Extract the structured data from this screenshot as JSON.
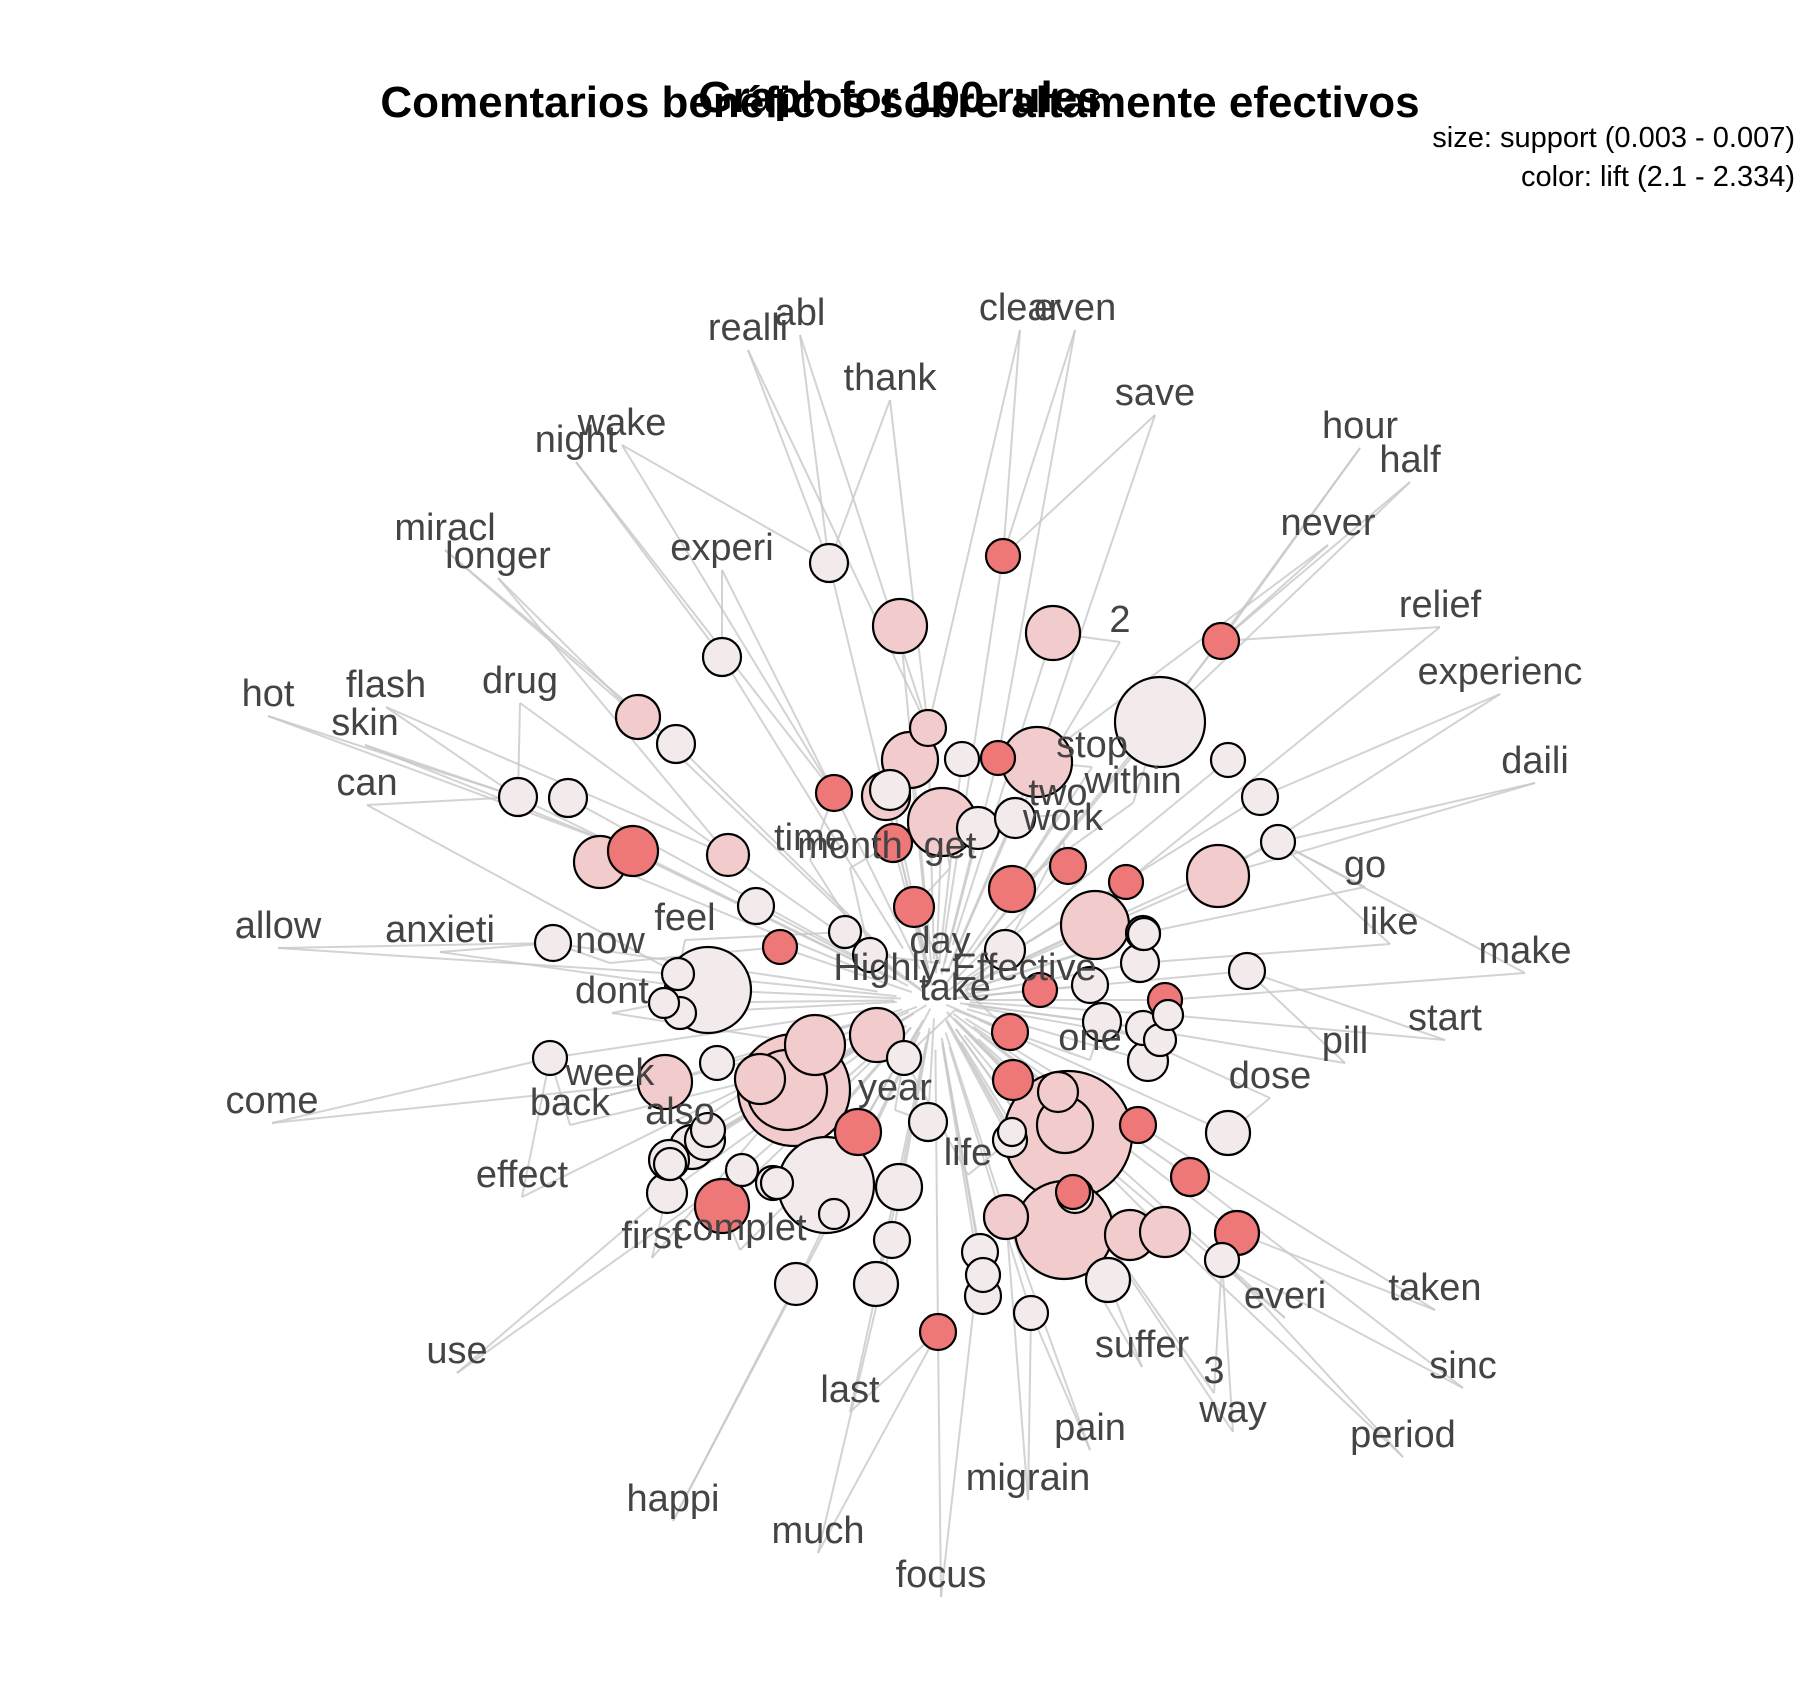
{
  "titles": {
    "main": "Comentarios benéficos sobre altamente efectivos",
    "overlay": "Graph for 100 rules"
  },
  "legend": {
    "size": "size: support (0.003 - 0.007)",
    "color": "color: lift (2.1 - 2.334)"
  },
  "colors": {
    "lift_low": "#f3ebeb",
    "lift_mid": "#f2cccc",
    "lift_high": "#ee7777",
    "edge": "#c8c8c8",
    "label": "#444444"
  },
  "item_labels": [
    "realli",
    "abl",
    "clear",
    "even",
    "thank",
    "save",
    "hour",
    "half",
    "night",
    "wake",
    "never",
    "miracl",
    "longer",
    "experi",
    "2",
    "relief",
    "experienc",
    "hot",
    "flash",
    "drug",
    "skin",
    "stop",
    "daili",
    "can",
    "within",
    "two",
    "work",
    "time",
    "month",
    "get",
    "go",
    "allow",
    "anxieti",
    "like",
    "feel",
    "now",
    "day",
    "make",
    "Highly-Effective",
    "dont",
    "take",
    "start",
    "pill",
    "one",
    "week",
    "dose",
    "come",
    "back",
    "year",
    "also",
    "effect",
    "life",
    "complet",
    "first",
    "taken",
    "everi",
    "sinc",
    "suffer",
    "3",
    "use",
    "last",
    "way",
    "period",
    "pain",
    "migrain",
    "happi",
    "much",
    "focus"
  ]
}
